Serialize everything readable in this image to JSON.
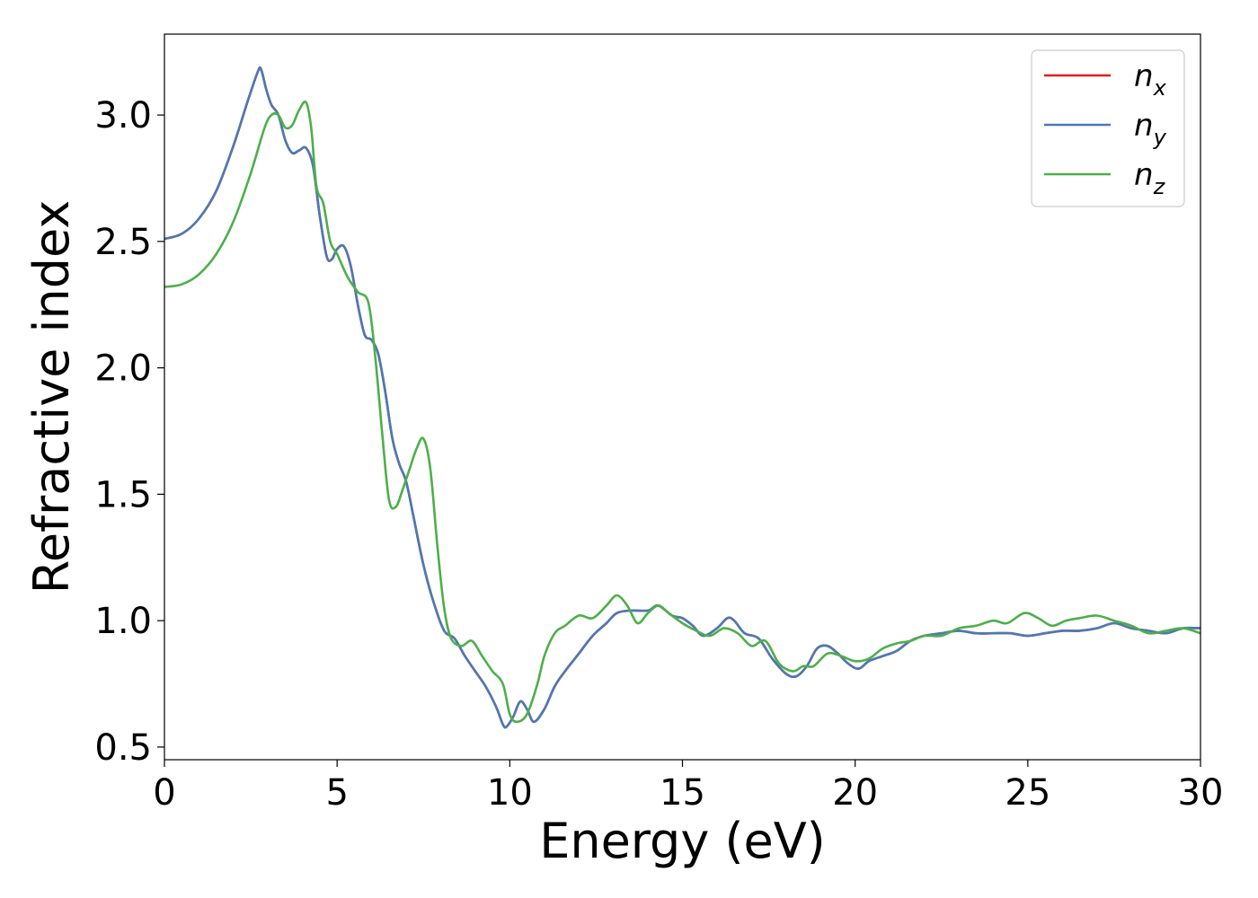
{
  "chart_data": {
    "type": "line",
    "xlabel": "Energy (eV)",
    "ylabel": "Refractive index",
    "xlim": [
      0,
      30
    ],
    "ylim": [
      0.45,
      3.32
    ],
    "xticks": [
      "0",
      "5",
      "10",
      "15",
      "20",
      "25",
      "30"
    ],
    "yticks": [
      "0.5",
      "1.0",
      "1.5",
      "2.0",
      "2.5",
      "3.0"
    ],
    "grid": false,
    "legend_position": "top-right",
    "series": [
      {
        "name": "n_x",
        "legend_base": "n",
        "legend_sub": "x",
        "color": "#e41a1c",
        "x": [
          0,
          0.5,
          1.0,
          1.5,
          2.0,
          2.4,
          2.7,
          2.8,
          2.95,
          3.1,
          3.3,
          3.5,
          3.7,
          3.9,
          4.1,
          4.3,
          4.5,
          4.7,
          4.85,
          5.0,
          5.2,
          5.4,
          5.6,
          5.8,
          6.0,
          6.2,
          6.4,
          6.6,
          6.8,
          7.0,
          7.2,
          7.5,
          7.8,
          8.1,
          8.4,
          8.7,
          9.0,
          9.3,
          9.6,
          9.8,
          9.9,
          10.1,
          10.3,
          10.5,
          10.7,
          11.0,
          11.3,
          11.6,
          12.0,
          12.4,
          12.8,
          13.1,
          13.5,
          14.0,
          14.3,
          14.7,
          15.0,
          15.3,
          15.6,
          16.0,
          16.3,
          16.5,
          16.8,
          17.2,
          17.6,
          18.0,
          18.3,
          18.6,
          18.9,
          19.2,
          19.5,
          19.8,
          20.1,
          20.4,
          20.8,
          21.2,
          21.6,
          22.0,
          22.5,
          23.0,
          23.5,
          24.0,
          24.5,
          25.0,
          25.5,
          26.0,
          26.5,
          27.0,
          27.5,
          28.0,
          28.5,
          29.0,
          29.5,
          30.0
        ],
        "y": [
          2.51,
          2.53,
          2.59,
          2.7,
          2.88,
          3.05,
          3.17,
          3.18,
          3.1,
          3.04,
          3.0,
          2.9,
          2.85,
          2.86,
          2.87,
          2.8,
          2.6,
          2.44,
          2.43,
          2.47,
          2.48,
          2.4,
          2.25,
          2.13,
          2.11,
          2.05,
          1.9,
          1.72,
          1.62,
          1.55,
          1.42,
          1.22,
          1.07,
          0.96,
          0.93,
          0.86,
          0.8,
          0.74,
          0.66,
          0.59,
          0.58,
          0.62,
          0.68,
          0.65,
          0.6,
          0.65,
          0.74,
          0.8,
          0.87,
          0.94,
          0.99,
          1.03,
          1.04,
          1.04,
          1.06,
          1.02,
          1.01,
          0.98,
          0.94,
          0.97,
          1.01,
          1.0,
          0.95,
          0.93,
          0.85,
          0.79,
          0.78,
          0.82,
          0.89,
          0.9,
          0.87,
          0.83,
          0.81,
          0.84,
          0.86,
          0.88,
          0.92,
          0.94,
          0.95,
          0.96,
          0.95,
          0.95,
          0.95,
          0.94,
          0.95,
          0.96,
          0.96,
          0.97,
          0.99,
          0.97,
          0.96,
          0.95,
          0.97,
          0.97
        ]
      },
      {
        "name": "n_y",
        "legend_base": "n",
        "legend_sub": "y",
        "color": "#4a7ab5",
        "x": [
          0,
          0.5,
          1.0,
          1.5,
          2.0,
          2.4,
          2.7,
          2.8,
          2.95,
          3.1,
          3.3,
          3.5,
          3.7,
          3.9,
          4.1,
          4.3,
          4.5,
          4.7,
          4.85,
          5.0,
          5.2,
          5.4,
          5.6,
          5.8,
          6.0,
          6.2,
          6.4,
          6.6,
          6.8,
          7.0,
          7.2,
          7.5,
          7.8,
          8.1,
          8.4,
          8.7,
          9.0,
          9.3,
          9.6,
          9.8,
          9.9,
          10.1,
          10.3,
          10.5,
          10.7,
          11.0,
          11.3,
          11.6,
          12.0,
          12.4,
          12.8,
          13.1,
          13.5,
          14.0,
          14.3,
          14.7,
          15.0,
          15.3,
          15.6,
          16.0,
          16.3,
          16.5,
          16.8,
          17.2,
          17.6,
          18.0,
          18.3,
          18.6,
          18.9,
          19.2,
          19.5,
          19.8,
          20.1,
          20.4,
          20.8,
          21.2,
          21.6,
          22.0,
          22.5,
          23.0,
          23.5,
          24.0,
          24.5,
          25.0,
          25.5,
          26.0,
          26.5,
          27.0,
          27.5,
          28.0,
          28.5,
          29.0,
          29.5,
          30.0
        ],
        "y": [
          2.51,
          2.53,
          2.59,
          2.7,
          2.88,
          3.05,
          3.17,
          3.18,
          3.1,
          3.04,
          3.0,
          2.9,
          2.85,
          2.86,
          2.87,
          2.8,
          2.6,
          2.44,
          2.43,
          2.47,
          2.48,
          2.4,
          2.25,
          2.13,
          2.11,
          2.05,
          1.9,
          1.72,
          1.62,
          1.55,
          1.42,
          1.22,
          1.07,
          0.96,
          0.93,
          0.86,
          0.8,
          0.74,
          0.66,
          0.59,
          0.58,
          0.62,
          0.68,
          0.65,
          0.6,
          0.65,
          0.74,
          0.8,
          0.87,
          0.94,
          0.99,
          1.03,
          1.04,
          1.04,
          1.06,
          1.02,
          1.01,
          0.98,
          0.94,
          0.97,
          1.01,
          1.0,
          0.95,
          0.93,
          0.85,
          0.79,
          0.78,
          0.82,
          0.89,
          0.9,
          0.87,
          0.83,
          0.81,
          0.84,
          0.86,
          0.88,
          0.92,
          0.94,
          0.95,
          0.96,
          0.95,
          0.95,
          0.95,
          0.94,
          0.95,
          0.96,
          0.96,
          0.97,
          0.99,
          0.97,
          0.96,
          0.95,
          0.97,
          0.97
        ]
      },
      {
        "name": "n_z",
        "legend_base": "n",
        "legend_sub": "z",
        "color": "#4daf4a",
        "x": [
          0,
          0.5,
          1.0,
          1.5,
          2.0,
          2.5,
          2.9,
          3.1,
          3.3,
          3.5,
          3.7,
          3.9,
          4.1,
          4.25,
          4.4,
          4.6,
          4.8,
          5.0,
          5.3,
          5.6,
          5.9,
          6.1,
          6.3,
          6.5,
          6.7,
          6.9,
          7.1,
          7.3,
          7.5,
          7.7,
          7.9,
          8.1,
          8.3,
          8.6,
          8.9,
          9.2,
          9.5,
          9.8,
          10.0,
          10.2,
          10.5,
          10.8,
          11.0,
          11.3,
          11.6,
          12.0,
          12.4,
          12.8,
          13.1,
          13.4,
          13.7,
          14.0,
          14.3,
          14.6,
          15.0,
          15.4,
          15.8,
          16.2,
          16.6,
          17.0,
          17.4,
          17.8,
          18.2,
          18.5,
          18.8,
          19.2,
          19.6,
          20.0,
          20.4,
          20.8,
          21.2,
          21.6,
          22.0,
          22.5,
          23.0,
          23.5,
          24.0,
          24.4,
          24.9,
          25.3,
          25.7,
          26.1,
          26.5,
          27.0,
          27.5,
          28.0,
          28.5,
          29.0,
          29.5,
          30.0
        ],
        "y": [
          2.32,
          2.33,
          2.37,
          2.45,
          2.58,
          2.77,
          2.95,
          3.0,
          3.0,
          2.95,
          2.96,
          3.02,
          3.05,
          2.95,
          2.72,
          2.65,
          2.5,
          2.45,
          2.36,
          2.3,
          2.26,
          2.05,
          1.75,
          1.48,
          1.45,
          1.52,
          1.6,
          1.68,
          1.72,
          1.6,
          1.3,
          1.05,
          0.93,
          0.9,
          0.92,
          0.86,
          0.8,
          0.75,
          0.63,
          0.6,
          0.63,
          0.75,
          0.86,
          0.95,
          0.98,
          1.02,
          1.01,
          1.06,
          1.1,
          1.06,
          0.99,
          1.03,
          1.06,
          1.03,
          0.99,
          0.96,
          0.94,
          0.97,
          0.95,
          0.9,
          0.92,
          0.83,
          0.8,
          0.82,
          0.82,
          0.87,
          0.86,
          0.84,
          0.85,
          0.89,
          0.91,
          0.92,
          0.94,
          0.94,
          0.97,
          0.98,
          1.0,
          0.99,
          1.03,
          1.01,
          0.98,
          1.0,
          1.01,
          1.02,
          1.0,
          0.98,
          0.95,
          0.96,
          0.97,
          0.95
        ]
      }
    ]
  }
}
